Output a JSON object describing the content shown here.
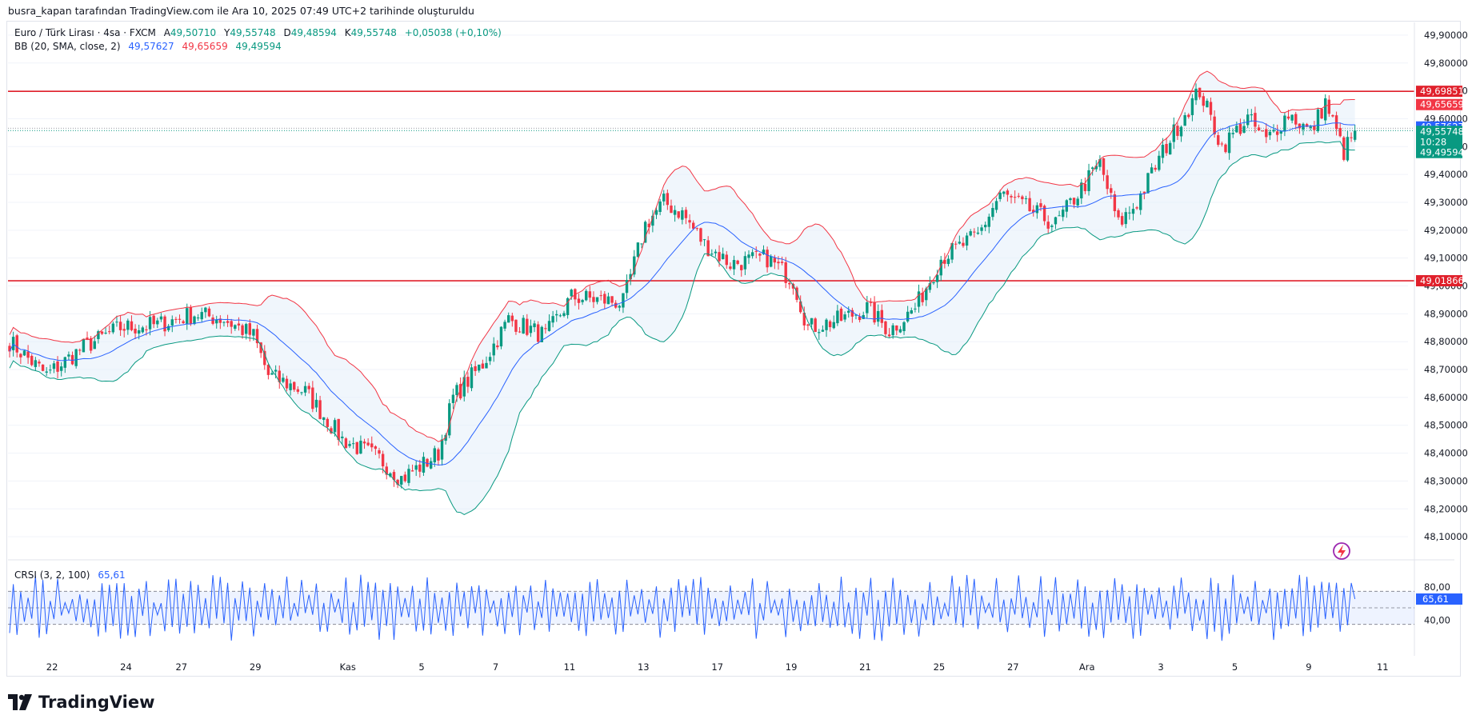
{
  "attribution": "busra_kapan tarafından TradingView.com ile Ara 10, 2025 07:49 UTC+2 tarihinde oluşturuldu",
  "legend": {
    "symbol": "Euro / Türk Lirası · 4sa · FXCM",
    "open_label": "A",
    "open": "49,50710",
    "high_label": "Y",
    "high": "49,55748",
    "low_label": "D",
    "low": "49,48594",
    "close_label": "K",
    "close": "49,55748",
    "change": "+0,05038 (+0,10%)",
    "bb_name": "BB (20, SMA, close, 2)",
    "bb_basis": "49,57627",
    "bb_upper": "49,65659",
    "bb_lower": "49,49594",
    "crsi_name": "CRSI (3, 2, 100)",
    "crsi_value": "65,61"
  },
  "price_badges": {
    "resistance": "49,69851",
    "bb_upper": "49,65659",
    "bb_basis": "49,57627",
    "last_price": "49,55748",
    "countdown": "10:28",
    "bb_lower": "49,49594",
    "support": "49,01866",
    "crsi": "65,61"
  },
  "brand": "TradingView",
  "colors": {
    "up": "#089981",
    "down": "#f23645",
    "basis": "#2962ff",
    "upper": "#f23645",
    "lower": "#089981",
    "band_fill": "#e3effa",
    "hline": "#e0202b",
    "crsi": "#2962ff"
  },
  "chart_data": [
    {
      "type": "candlestick",
      "title": "Euro / Türk Lirası · 4sa · FXCM",
      "y_axis": {
        "range": [
          48.04,
          49.94
        ],
        "tick_labels": [
          "49,90000",
          "49,80000",
          "49,70000",
          "49,60000",
          "49,50000",
          "49,40000",
          "49,30000",
          "49,20000",
          "49,10000",
          "49,00000",
          "48,90000",
          "48,80000",
          "48,70000",
          "48,60000",
          "48,50000",
          "48,40000",
          "48,30000",
          "48,20000",
          "48,10000"
        ],
        "tick_values": [
          49.9,
          49.8,
          49.7,
          49.6,
          49.5,
          49.4,
          49.3,
          49.2,
          49.1,
          49.0,
          48.9,
          48.8,
          48.7,
          48.6,
          48.5,
          48.4,
          48.3,
          48.2,
          48.1
        ]
      },
      "x_axis": {
        "tick_labels": [
          "22",
          "24",
          "27",
          "29",
          "Kas",
          "5",
          "7",
          "11",
          "13",
          "17",
          "19",
          "21",
          "25",
          "27",
          "Ara",
          "3",
          "5",
          "9",
          "11"
        ],
        "tick_bar_index": [
          5,
          25,
          40,
          60,
          85,
          105,
          125,
          145,
          165,
          185,
          205,
          225,
          245,
          265,
          285,
          305,
          325,
          345,
          365
        ]
      },
      "horizontal_lines": [
        {
          "name": "resistance",
          "value": 49.69851
        },
        {
          "name": "support",
          "value": 49.01866
        }
      ],
      "bollinger_bands": {
        "period": 20,
        "type": "SMA",
        "source": "close",
        "stddev": 2,
        "basis": 49.57627,
        "upper": 49.65659,
        "lower": 49.49594
      },
      "last_price": 49.55748,
      "path_keypoints": [
        {
          "bar": 0,
          "price": 48.8
        },
        {
          "bar": 10,
          "price": 48.68
        },
        {
          "bar": 20,
          "price": 48.78
        },
        {
          "bar": 30,
          "price": 48.85
        },
        {
          "bar": 40,
          "price": 48.86
        },
        {
          "bar": 50,
          "price": 48.9
        },
        {
          "bar": 58,
          "price": 48.88
        },
        {
          "bar": 66,
          "price": 48.82
        },
        {
          "bar": 70,
          "price": 48.68
        },
        {
          "bar": 80,
          "price": 48.62
        },
        {
          "bar": 90,
          "price": 48.45
        },
        {
          "bar": 100,
          "price": 48.38
        },
        {
          "bar": 106,
          "price": 48.31
        },
        {
          "bar": 112,
          "price": 48.36
        },
        {
          "bar": 116,
          "price": 48.4
        },
        {
          "bar": 120,
          "price": 48.6
        },
        {
          "bar": 128,
          "price": 48.72
        },
        {
          "bar": 135,
          "price": 48.88
        },
        {
          "bar": 145,
          "price": 48.82
        },
        {
          "bar": 152,
          "price": 48.96
        },
        {
          "bar": 160,
          "price": 48.95
        },
        {
          "bar": 166,
          "price": 48.94
        },
        {
          "bar": 172,
          "price": 49.22
        },
        {
          "bar": 177,
          "price": 49.3
        },
        {
          "bar": 182,
          "price": 49.26
        },
        {
          "bar": 188,
          "price": 49.15
        },
        {
          "bar": 195,
          "price": 49.08
        },
        {
          "bar": 205,
          "price": 49.1
        },
        {
          "bar": 212,
          "price": 49.02
        },
        {
          "bar": 216,
          "price": 48.85
        },
        {
          "bar": 225,
          "price": 48.88
        },
        {
          "bar": 232,
          "price": 48.92
        },
        {
          "bar": 238,
          "price": 48.84
        },
        {
          "bar": 245,
          "price": 48.92
        },
        {
          "bar": 252,
          "price": 49.1
        },
        {
          "bar": 262,
          "price": 49.18
        },
        {
          "bar": 268,
          "price": 49.33
        },
        {
          "bar": 275,
          "price": 49.28
        },
        {
          "bar": 283,
          "price": 49.22
        },
        {
          "bar": 290,
          "price": 49.35
        },
        {
          "bar": 295,
          "price": 49.44
        },
        {
          "bar": 300,
          "price": 49.22
        },
        {
          "bar": 305,
          "price": 49.3
        },
        {
          "bar": 312,
          "price": 49.48
        },
        {
          "bar": 318,
          "price": 49.62
        },
        {
          "bar": 322,
          "price": 49.7
        },
        {
          "bar": 328,
          "price": 49.5
        },
        {
          "bar": 335,
          "price": 49.6
        },
        {
          "bar": 340,
          "price": 49.52
        },
        {
          "bar": 346,
          "price": 49.62
        },
        {
          "bar": 352,
          "price": 49.55
        },
        {
          "bar": 356,
          "price": 49.66
        },
        {
          "bar": 361,
          "price": 49.48
        },
        {
          "bar": 364,
          "price": 49.556
        }
      ]
    },
    {
      "type": "line",
      "title": "CRSI (3, 2, 100)",
      "y_axis": {
        "tick_labels": [
          "80,00",
          "40,00"
        ],
        "tick_values": [
          80,
          40
        ],
        "range": [
          -3,
          113
        ],
        "bands": [
          75,
          55,
          35
        ]
      },
      "last_value": 65.61,
      "oscillation": {
        "min": 15,
        "max": 95
      }
    }
  ]
}
